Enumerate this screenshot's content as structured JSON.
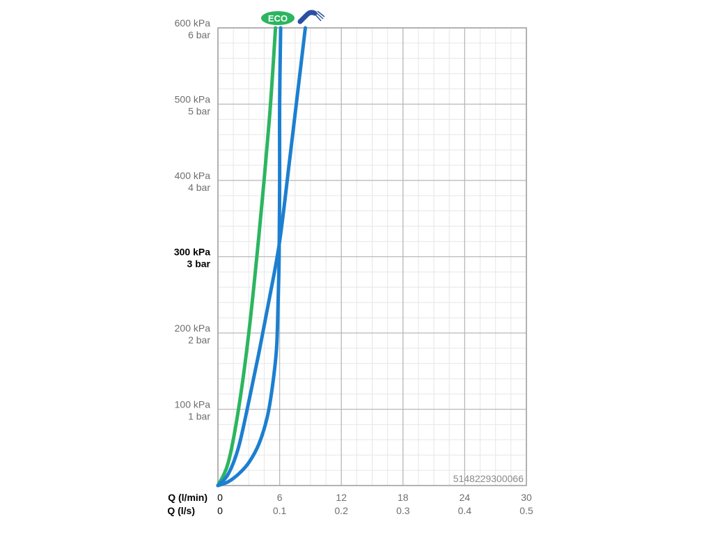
{
  "chart_data": {
    "type": "line",
    "x_axis_primary": {
      "title": "Q (l/min)",
      "ticks": [
        "0",
        "6",
        "12",
        "18",
        "24",
        "30"
      ],
      "values": [
        0,
        6,
        12,
        18,
        24,
        30
      ],
      "range": [
        0,
        30
      ]
    },
    "x_axis_secondary": {
      "title": "Q (l/s)",
      "ticks": [
        "0",
        "0.1",
        "0.2",
        "0.3",
        "0.4",
        "0.5"
      ]
    },
    "y_axis": {
      "range": [
        0,
        600
      ],
      "unit": "kPa",
      "ticks": [
        {
          "value": 600,
          "kpa": "600 kPa",
          "bar": "6 bar",
          "bold": false
        },
        {
          "value": 500,
          "kpa": "500 kPa",
          "bar": "5 bar",
          "bold": false
        },
        {
          "value": 400,
          "kpa": "400 kPa",
          "bar": "4 bar",
          "bold": false
        },
        {
          "value": 300,
          "kpa": "300 kPa",
          "bar": "3 bar",
          "bold": true
        },
        {
          "value": 200,
          "kpa": "200 kPa",
          "bar": "2 bar",
          "bold": false
        },
        {
          "value": 100,
          "kpa": "100 kPa",
          "bar": "1 bar",
          "bold": false
        }
      ]
    },
    "grid": true,
    "series": [
      {
        "marker": "eco",
        "color": "#2cb560",
        "points": [
          [
            0,
            0
          ],
          [
            1,
            30
          ],
          [
            2,
            100
          ],
          [
            3,
            200
          ],
          [
            4,
            330
          ],
          [
            5,
            480
          ],
          [
            5.6,
            600
          ]
        ]
      },
      {
        "marker": "flow-limiter",
        "color": "#1c7fd0",
        "points": [
          [
            0,
            0
          ],
          [
            1,
            5
          ],
          [
            2,
            15
          ],
          [
            3,
            30
          ],
          [
            4,
            55
          ],
          [
            4.8,
            90
          ],
          [
            5.3,
            130
          ],
          [
            5.7,
            180
          ],
          [
            5.85,
            240
          ],
          [
            5.95,
            300
          ],
          [
            6,
            400
          ],
          [
            6,
            500
          ],
          [
            6.1,
            600
          ]
        ]
      },
      {
        "marker": "shower-head-icon",
        "color": "#1c7fd0",
        "points": [
          [
            0,
            0
          ],
          [
            1,
            15
          ],
          [
            2,
            50
          ],
          [
            3,
            110
          ],
          [
            4,
            175
          ],
          [
            5,
            245
          ],
          [
            6,
            320
          ],
          [
            7,
            430
          ],
          [
            8.5,
            600
          ]
        ]
      }
    ],
    "code_label": "5148229300066",
    "eco_badge_text": "ECO"
  }
}
